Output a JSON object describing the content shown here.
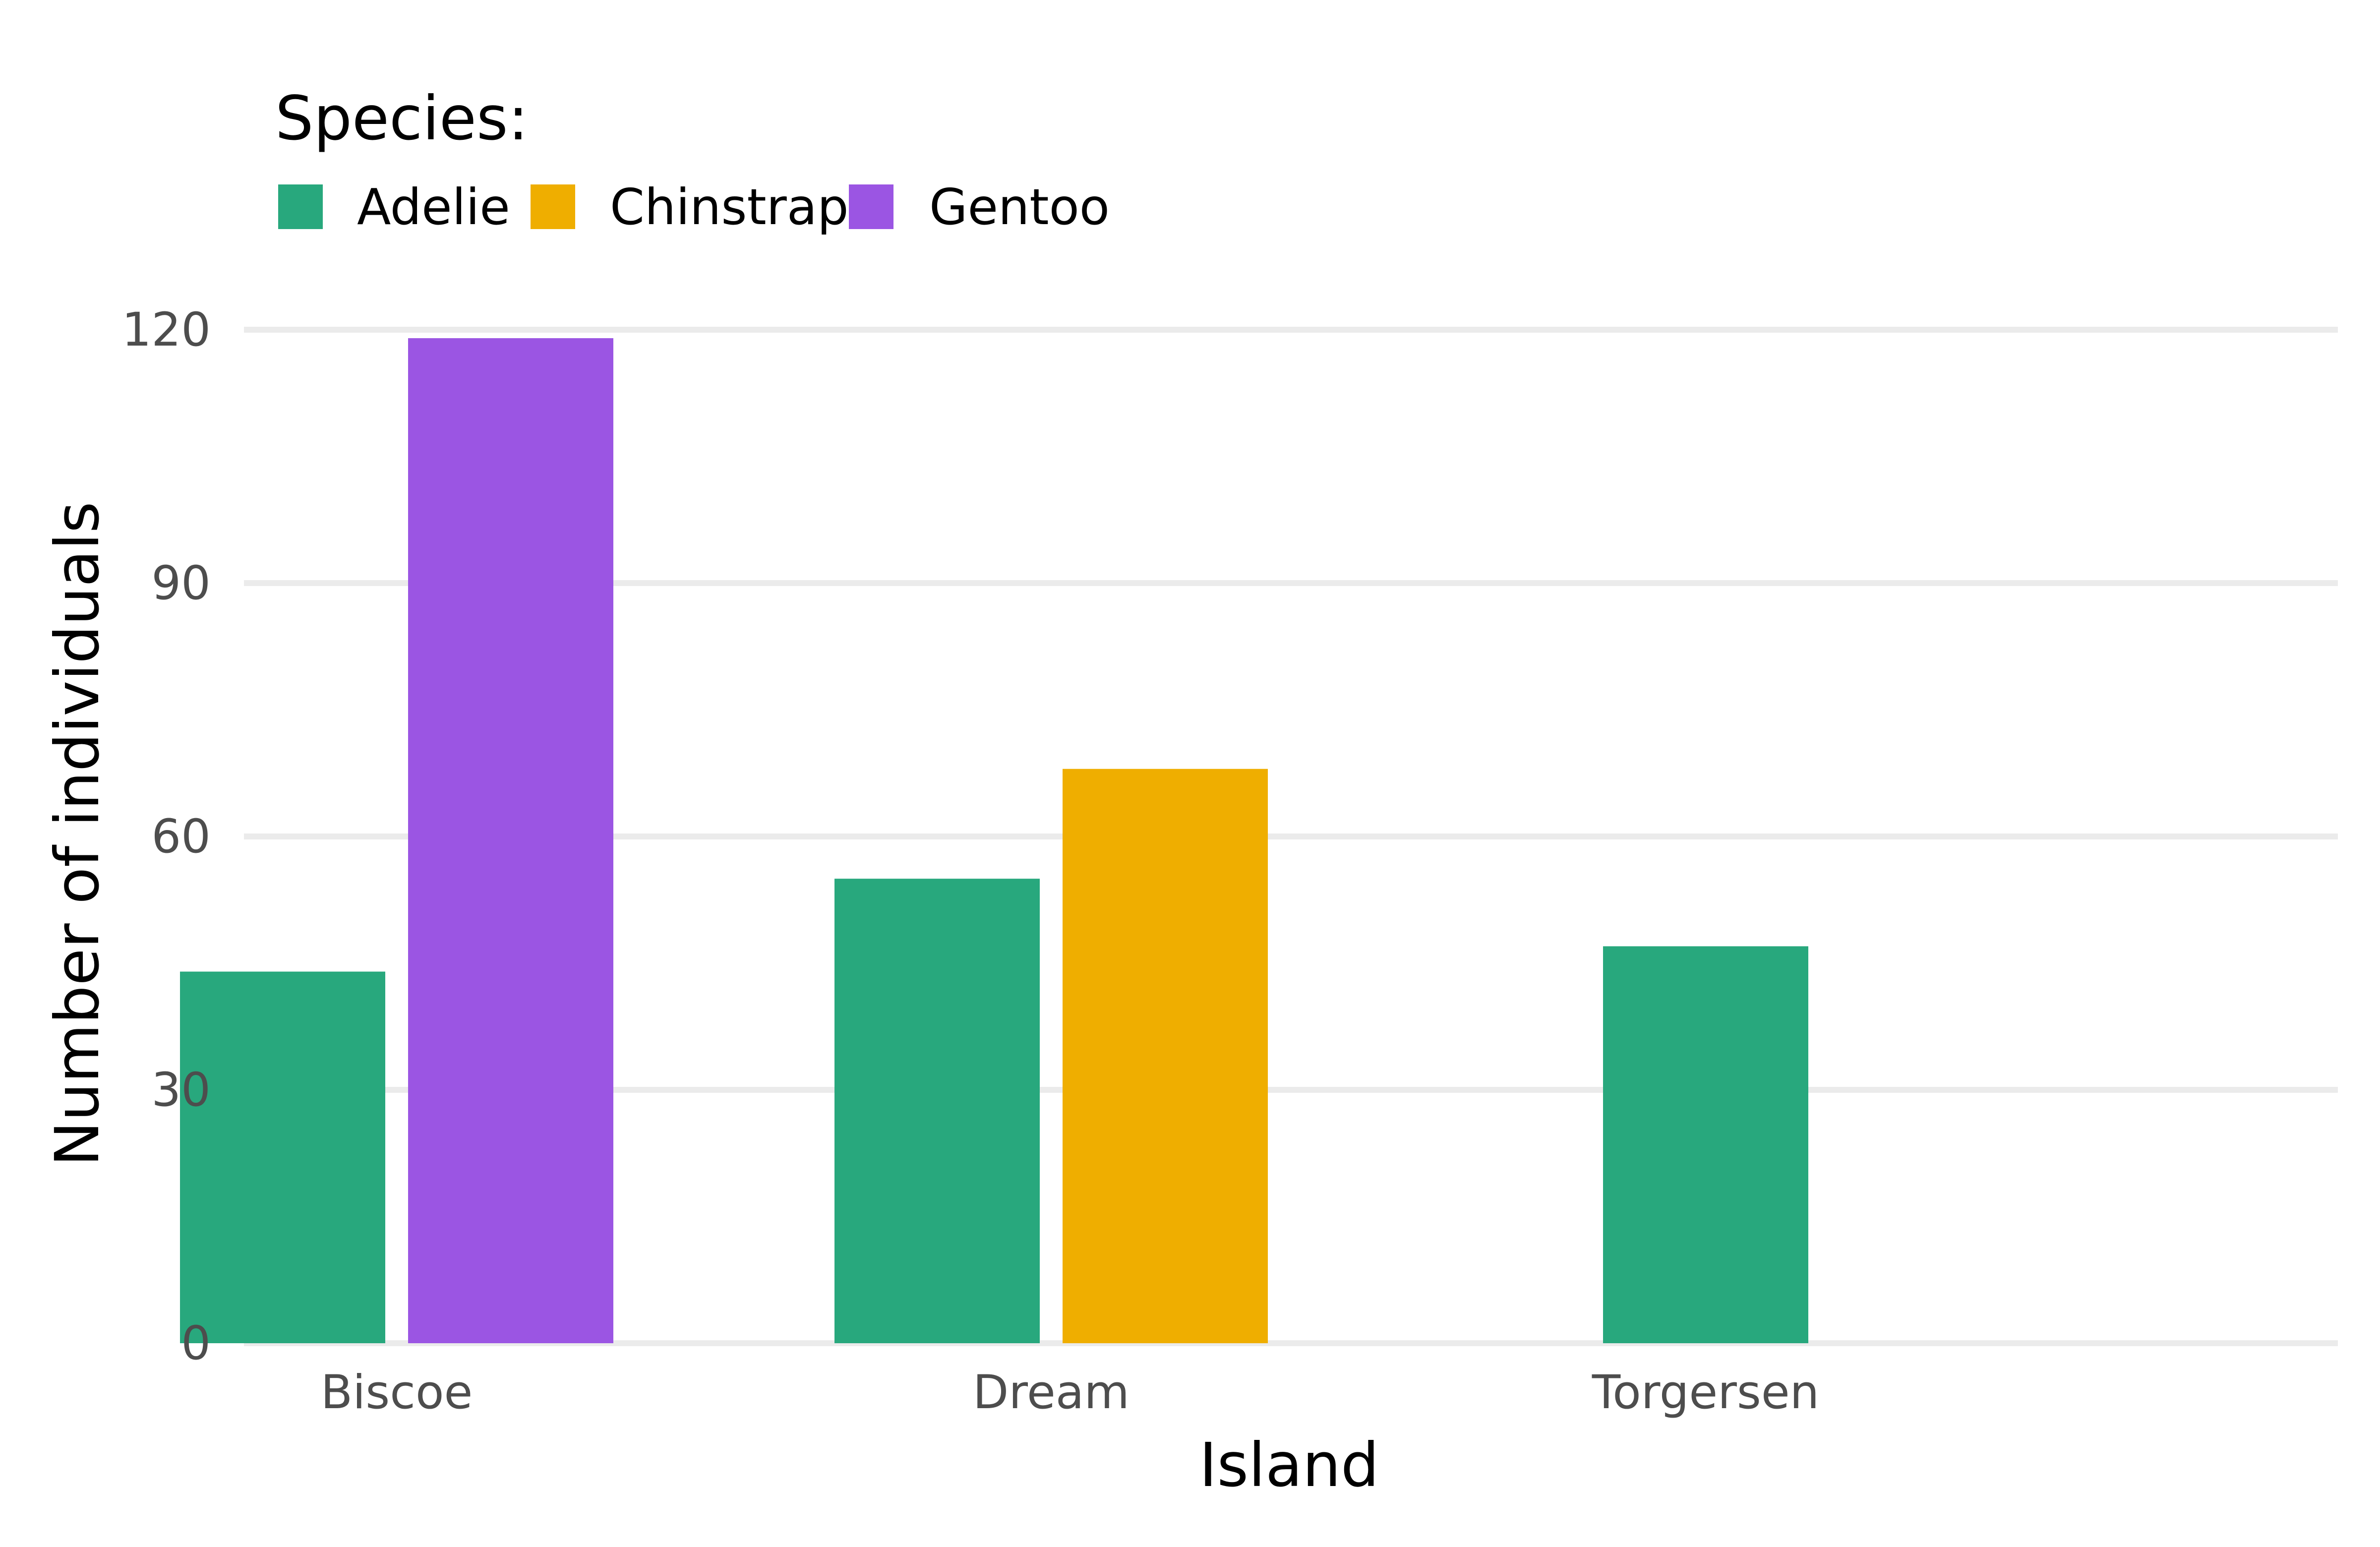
{
  "chart_data": {
    "type": "bar",
    "title": "",
    "xlabel": "Island",
    "ylabel": "Number of individuals",
    "legend": {
      "title": "Species:",
      "position": "top-left",
      "entries": [
        {
          "name": "Adelie",
          "color": "#28a87d"
        },
        {
          "name": "Chinstrap",
          "color": "#efae00"
        },
        {
          "name": "Gentoo",
          "color": "#9b55e3"
        }
      ]
    },
    "categories": [
      "Biscoe",
      "Dream",
      "Torgersen"
    ],
    "bars": [
      {
        "category": "Biscoe",
        "species": "Adelie",
        "value": 44,
        "color": "#28a87d"
      },
      {
        "category": "Biscoe",
        "species": "Gentoo",
        "value": 119,
        "color": "#9b55e3"
      },
      {
        "category": "Dream",
        "species": "Adelie",
        "value": 55,
        "color": "#28a87d"
      },
      {
        "category": "Dream",
        "species": "Chinstrap",
        "value": 68,
        "color": "#efae00"
      },
      {
        "category": "Torgersen",
        "species": "Adelie",
        "value": 47,
        "color": "#28a87d"
      }
    ],
    "y_ticks": [
      0,
      30,
      60,
      90,
      120
    ],
    "ylim": [
      0,
      120
    ],
    "grid": {
      "horizontal": true,
      "vertical": false,
      "color": "#ebebeb"
    }
  }
}
